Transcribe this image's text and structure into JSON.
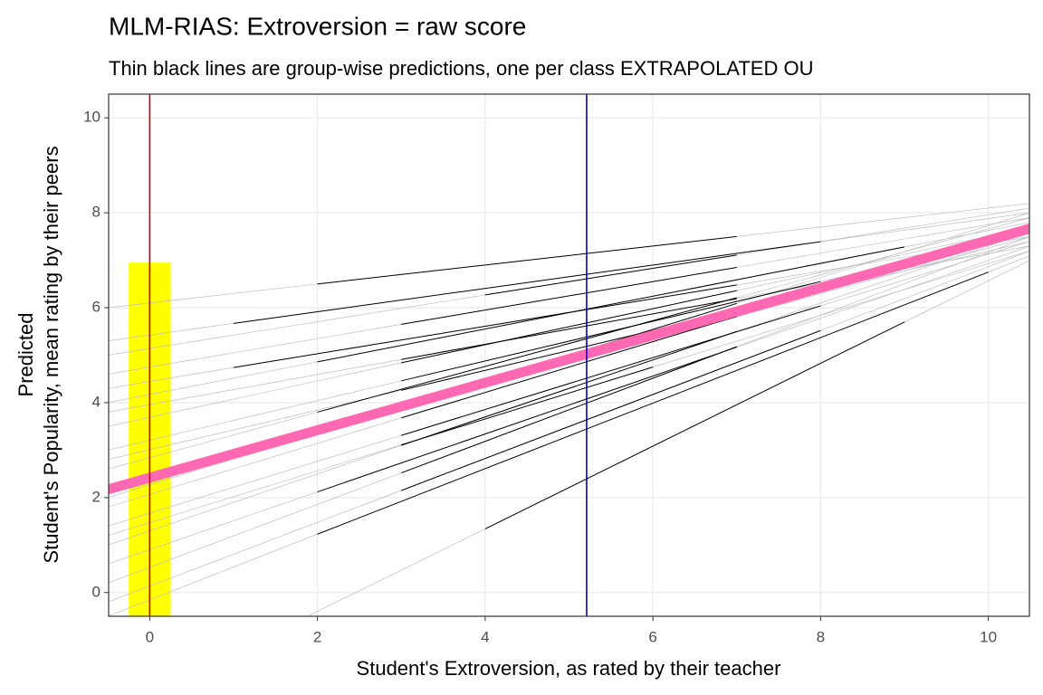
{
  "chart_data": {
    "type": "line",
    "title": "MLM-RIAS: Extroversion = raw score",
    "subtitle": "Thin black lines are group-wise predictions, one per class EXTRAPOLATED OU",
    "x_label": "Student's Extroversion, as rated by their teacher",
    "y_label": [
      "Predicted",
      "Student's Popularity, mean rating by their peers"
    ],
    "xlim": [
      -0.49,
      10.49
    ],
    "ylim": [
      -0.5,
      10.5
    ],
    "xticks": [
      0,
      2,
      4,
      6,
      8,
      10
    ],
    "yticks": [
      0,
      2,
      4,
      6,
      8,
      10
    ],
    "grid": true,
    "highlight": {
      "x": [
        -0.25,
        0.25
      ],
      "value": 6.95,
      "color": "#ffff00"
    },
    "group_colors": {
      "extrapolated": "#bebebe",
      "observed": "#000000"
    },
    "groups": [
      {
        "x": [
          -0.5,
          2,
          7,
          10.5
        ],
        "values": [
          6.0,
          6.5,
          7.5,
          8.2
        ]
      },
      {
        "x": [
          -0.5,
          1,
          8,
          10.5
        ],
        "values": [
          5.3,
          5.67,
          7.39,
          8.0
        ]
      },
      {
        "x": [
          -0.5,
          3,
          7,
          10.5
        ],
        "values": [
          4.6,
          5.65,
          6.85,
          7.9
        ]
      },
      {
        "x": [
          -0.5,
          2,
          9,
          10.5
        ],
        "values": [
          4.0,
          4.86,
          7.28,
          7.8
        ]
      },
      {
        "x": [
          -0.5,
          3,
          7,
          10.5
        ],
        "values": [
          3.5,
          4.84,
          6.36,
          7.7
        ]
      },
      {
        "x": [
          -0.5,
          3,
          8,
          10.5
        ],
        "values": [
          3.0,
          4.46,
          6.55,
          7.6
        ]
      },
      {
        "x": [
          -0.5,
          2,
          7,
          10.5
        ],
        "values": [
          2.6,
          3.8,
          6.21,
          7.9
        ]
      },
      {
        "x": [
          -0.5,
          3,
          7,
          10.5
        ],
        "values": [
          2.2,
          3.89,
          5.81,
          7.5
        ]
      },
      {
        "x": [
          -0.5,
          3,
          7,
          10.5
        ],
        "values": [
          1.8,
          3.68,
          5.82,
          7.7
        ]
      },
      {
        "x": [
          -0.5,
          3,
          8,
          10.5
        ],
        "values": [
          1.4,
          3.31,
          6.04,
          7.4
        ]
      },
      {
        "x": [
          -0.5,
          3,
          7,
          10.5
        ],
        "values": [
          1.0,
          3.1,
          5.5,
          7.6
        ]
      },
      {
        "x": [
          -0.5,
          2,
          7,
          10.5
        ],
        "values": [
          0.6,
          2.12,
          5.17,
          7.3
        ]
      },
      {
        "x": [
          -0.5,
          3,
          7,
          10.5
        ],
        "values": [
          0.2,
          2.52,
          5.18,
          7.5
        ]
      },
      {
        "x": [
          -0.5,
          3,
          8,
          10.5
        ],
        "values": [
          -0.2,
          2.15,
          5.52,
          7.2
        ]
      },
      {
        "x": [
          -0.5,
          2,
          10,
          10.5
        ],
        "values": [
          -0.5,
          1.23,
          6.75,
          7.1
        ]
      },
      {
        "x": [
          -0.5,
          4,
          9,
          10.5
        ],
        "values": [
          -2.57,
          1.34,
          5.7,
          7.0
        ]
      },
      {
        "x": [
          -0.5,
          4,
          7,
          10.5
        ],
        "values": [
          5.0,
          6.27,
          7.11,
          8.1
        ]
      },
      {
        "x": [
          -0.5,
          3,
          7,
          10.5
        ],
        "values": [
          3.8,
          4.91,
          6.19,
          7.3
        ]
      },
      {
        "x": [
          -0.5,
          4,
          7,
          10.5
        ],
        "values": [
          2.0,
          4.45,
          6.09,
          8.0
        ]
      },
      {
        "x": [
          -0.5,
          3,
          6,
          10.5
        ],
        "values": [
          1.2,
          3.11,
          4.75,
          7.2
        ]
      },
      {
        "x": [
          -0.5,
          1,
          7,
          10.5
        ],
        "values": [
          4.3,
          4.74,
          6.48,
          7.5
        ]
      },
      {
        "x": [
          -0.5,
          3,
          7,
          10.5
        ],
        "values": [
          2.8,
          4.26,
          5.94,
          7.4
        ]
      }
    ],
    "fixed": {
      "x": [
        -0.5,
        10.5
      ],
      "values": [
        2.17,
        7.67
      ],
      "color": "#ff69b4"
    },
    "vlines": [
      {
        "x": 0,
        "color": "#cc0000"
      },
      {
        "x": 5.21,
        "color": "#0000cc"
      }
    ]
  }
}
